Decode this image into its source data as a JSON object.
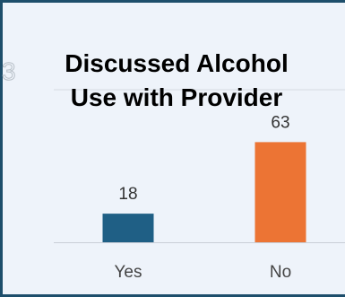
{
  "chart_data": {
    "type": "bar",
    "title": "Discussed  Alcohol\nUse with Provider",
    "categories": [
      "Yes",
      "No"
    ],
    "values": [
      18,
      63
    ],
    "ylim": [
      0,
      70
    ],
    "bar_colors": [
      "#1f5f85",
      "#ec7434"
    ],
    "grid": false
  },
  "corner_mark": "3"
}
